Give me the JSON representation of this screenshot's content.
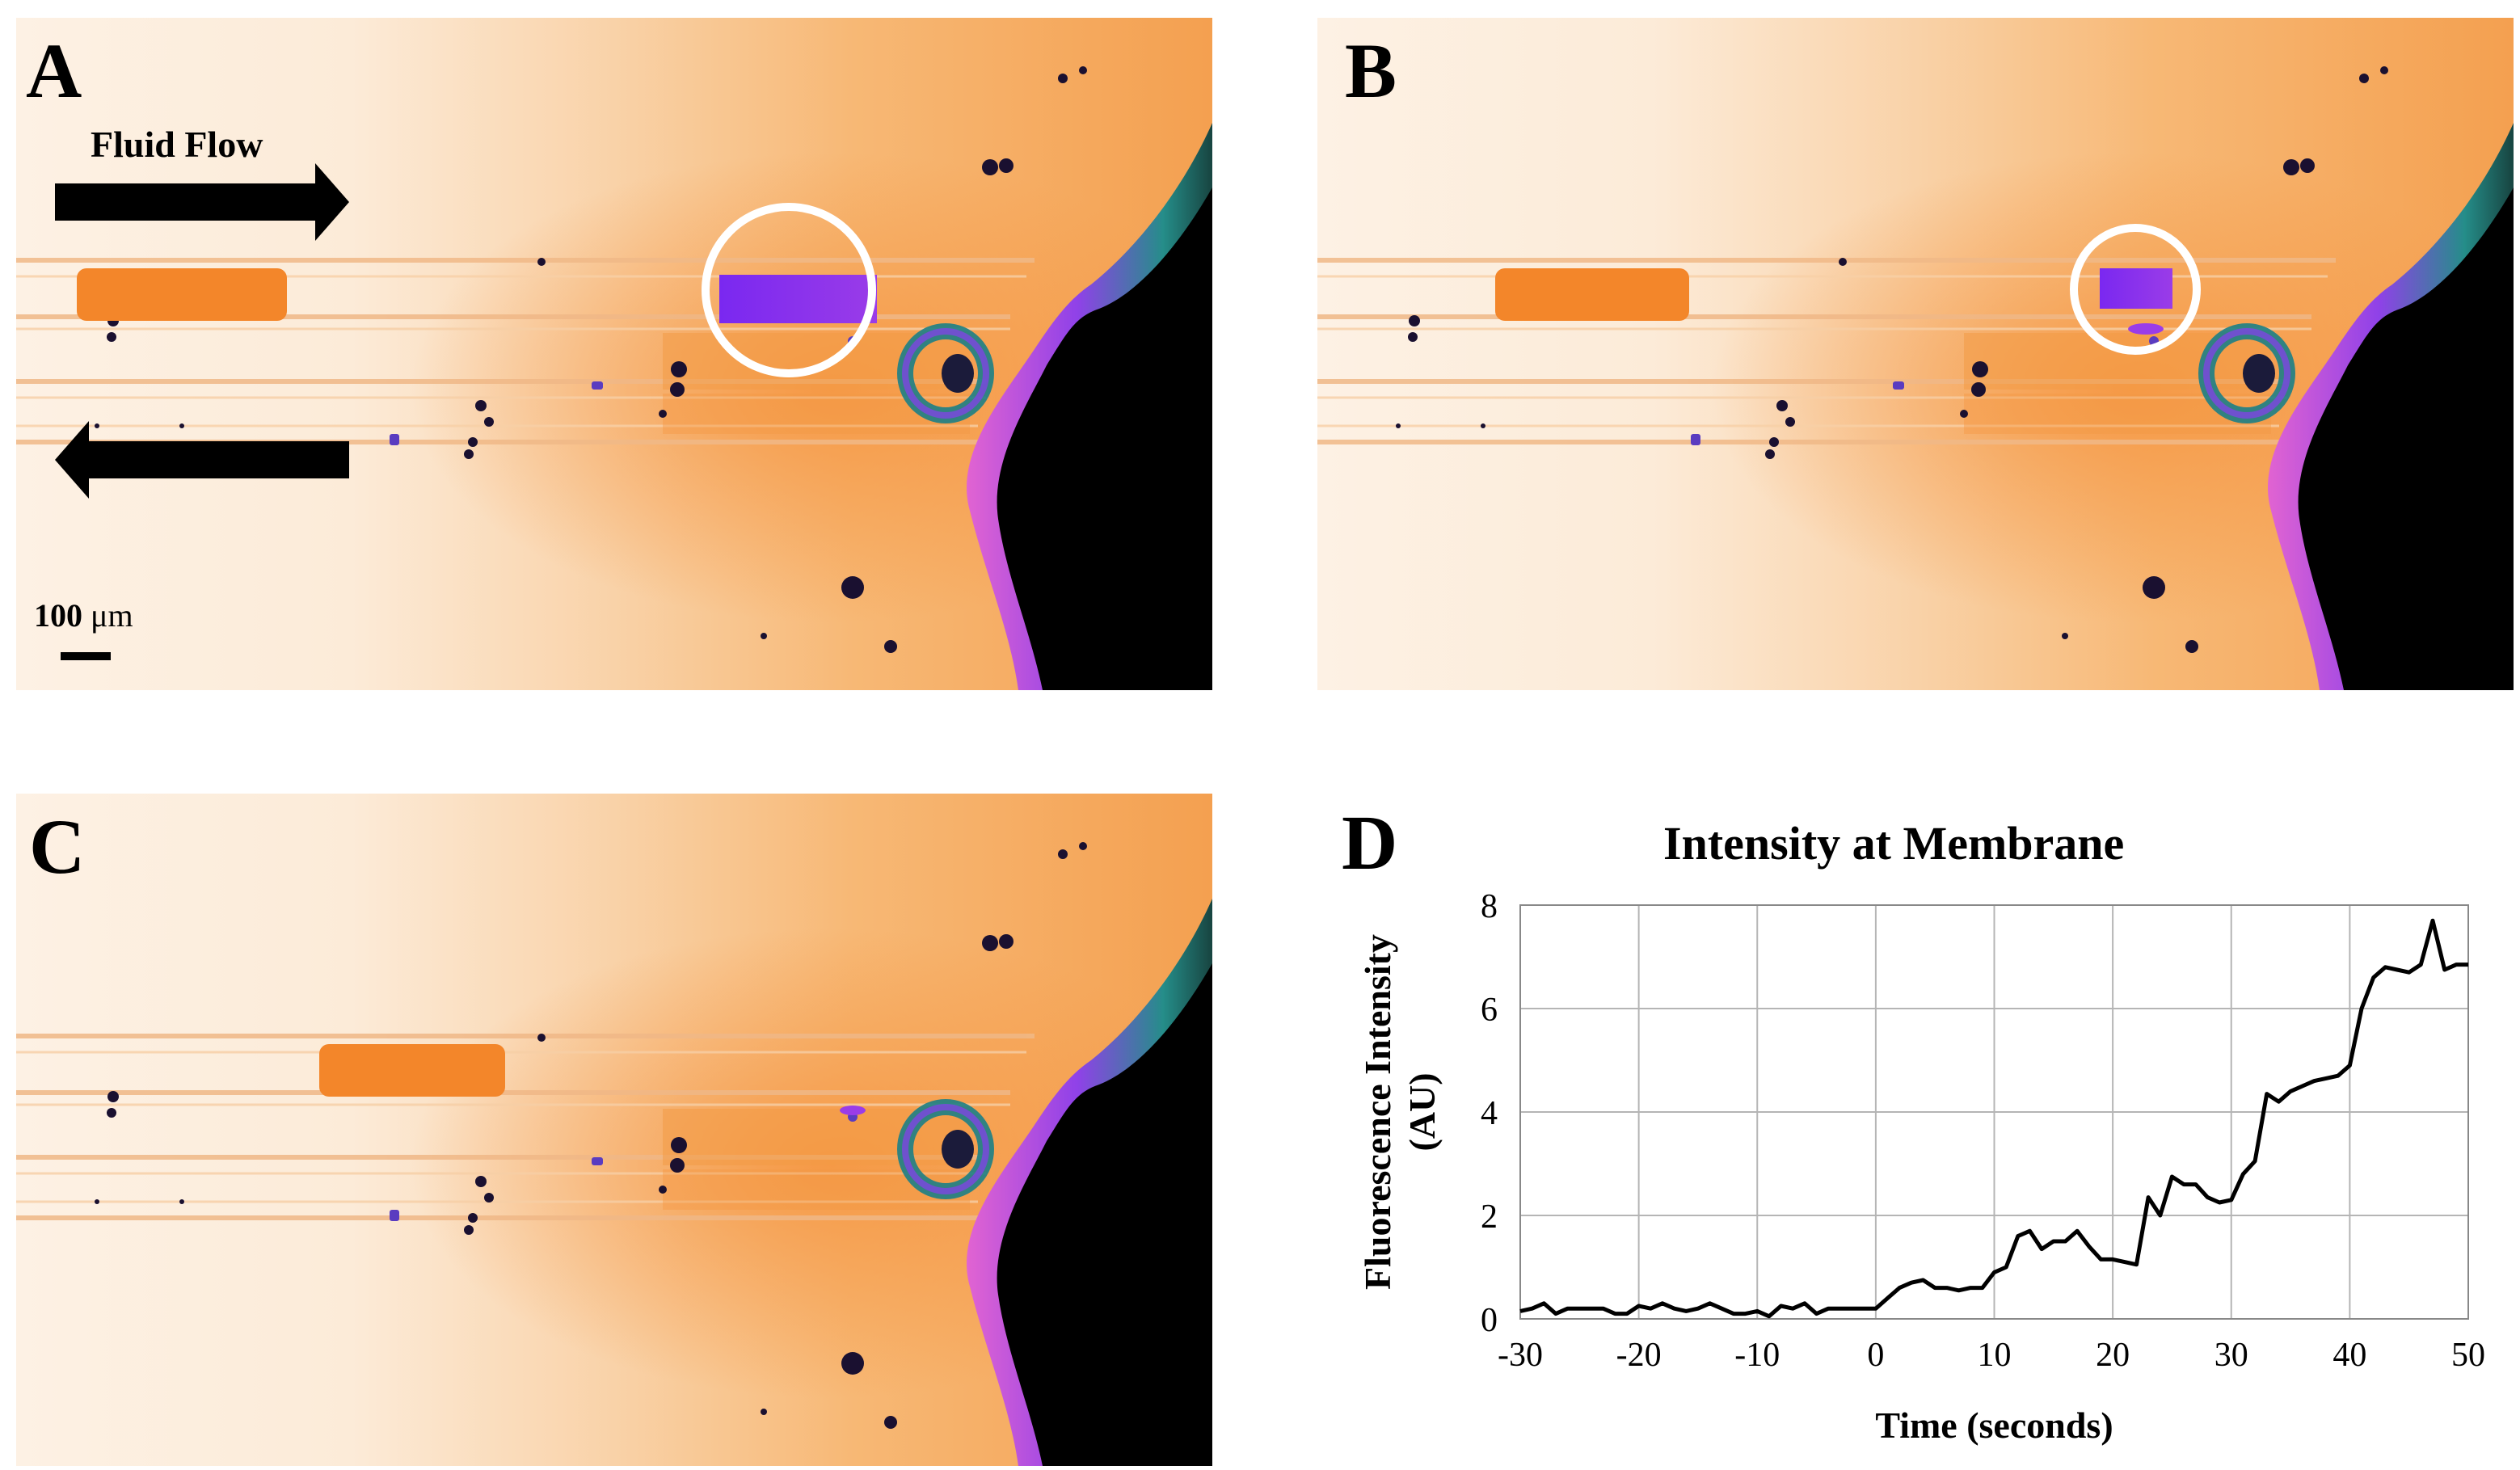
{
  "figure": {
    "panels": [
      {
        "letter": "A"
      },
      {
        "letter": "B"
      },
      {
        "letter": "C"
      },
      {
        "letter": "D"
      }
    ],
    "annotations": {
      "fluid_flow": "Fluid Flow",
      "scale_value": "100",
      "scale_unit": "μm"
    },
    "colors": {
      "background_light": "#fdf0e2",
      "tissue_orange": "#f5a050",
      "highlight_purple": "#8a3cf0",
      "edge_teal": "#1a8c8c",
      "void_black": "#000000",
      "circle_white": "#ffffff"
    }
  },
  "chart_data": {
    "type": "line",
    "title": "Intensity at Membrane",
    "xlabel": "Time (seconds)",
    "ylabel_line1": "Fluorescence Intensity",
    "ylabel_line2": "(AU)",
    "xlim": [
      -30,
      50
    ],
    "ylim": [
      0,
      8
    ],
    "xticks": [
      "-30",
      "-20",
      "-10",
      "0",
      "10",
      "20",
      "30",
      "40",
      "50"
    ],
    "yticks": [
      "0",
      "2",
      "4",
      "6",
      "8"
    ],
    "grid": true,
    "series": [
      {
        "name": "Intensity",
        "x": [
          -30,
          -29,
          -28,
          -27,
          -26,
          -25,
          -24,
          -23,
          -22,
          -21,
          -20,
          -19,
          -18,
          -17,
          -16,
          -15,
          -14,
          -13,
          -12,
          -11,
          -10,
          -9,
          -8,
          -7,
          -6,
          -5,
          -4,
          -3,
          -2,
          -1,
          0,
          1,
          2,
          3,
          4,
          5,
          6,
          7,
          8,
          9,
          10,
          11,
          12,
          13,
          14,
          15,
          16,
          17,
          18,
          19,
          20,
          21,
          22,
          23,
          24,
          25,
          26,
          27,
          28,
          29,
          30,
          31,
          32,
          33,
          34,
          35,
          36,
          37,
          38,
          39,
          40,
          41,
          42,
          43,
          44,
          45,
          46,
          47,
          48,
          49,
          50
        ],
        "values": [
          0.15,
          0.2,
          0.3,
          0.1,
          0.2,
          0.2,
          0.2,
          0.2,
          0.1,
          0.1,
          0.25,
          0.2,
          0.3,
          0.2,
          0.15,
          0.2,
          0.3,
          0.2,
          0.1,
          0.1,
          0.15,
          0.05,
          0.25,
          0.2,
          0.3,
          0.1,
          0.2,
          0.2,
          0.2,
          0.2,
          0.2,
          0.4,
          0.6,
          0.7,
          0.75,
          0.6,
          0.6,
          0.55,
          0.6,
          0.6,
          0.9,
          1.0,
          1.6,
          1.7,
          1.35,
          1.5,
          1.5,
          1.7,
          1.4,
          1.15,
          1.15,
          1.1,
          1.05,
          2.35,
          2.0,
          2.75,
          2.6,
          2.6,
          2.35,
          2.25,
          2.3,
          2.8,
          3.05,
          4.35,
          4.2,
          4.4,
          4.5,
          4.6,
          4.65,
          4.7,
          4.9,
          6.0,
          6.6,
          6.8,
          6.75,
          6.7,
          6.85,
          7.7,
          6.75,
          6.85,
          6.85
        ]
      }
    ]
  }
}
